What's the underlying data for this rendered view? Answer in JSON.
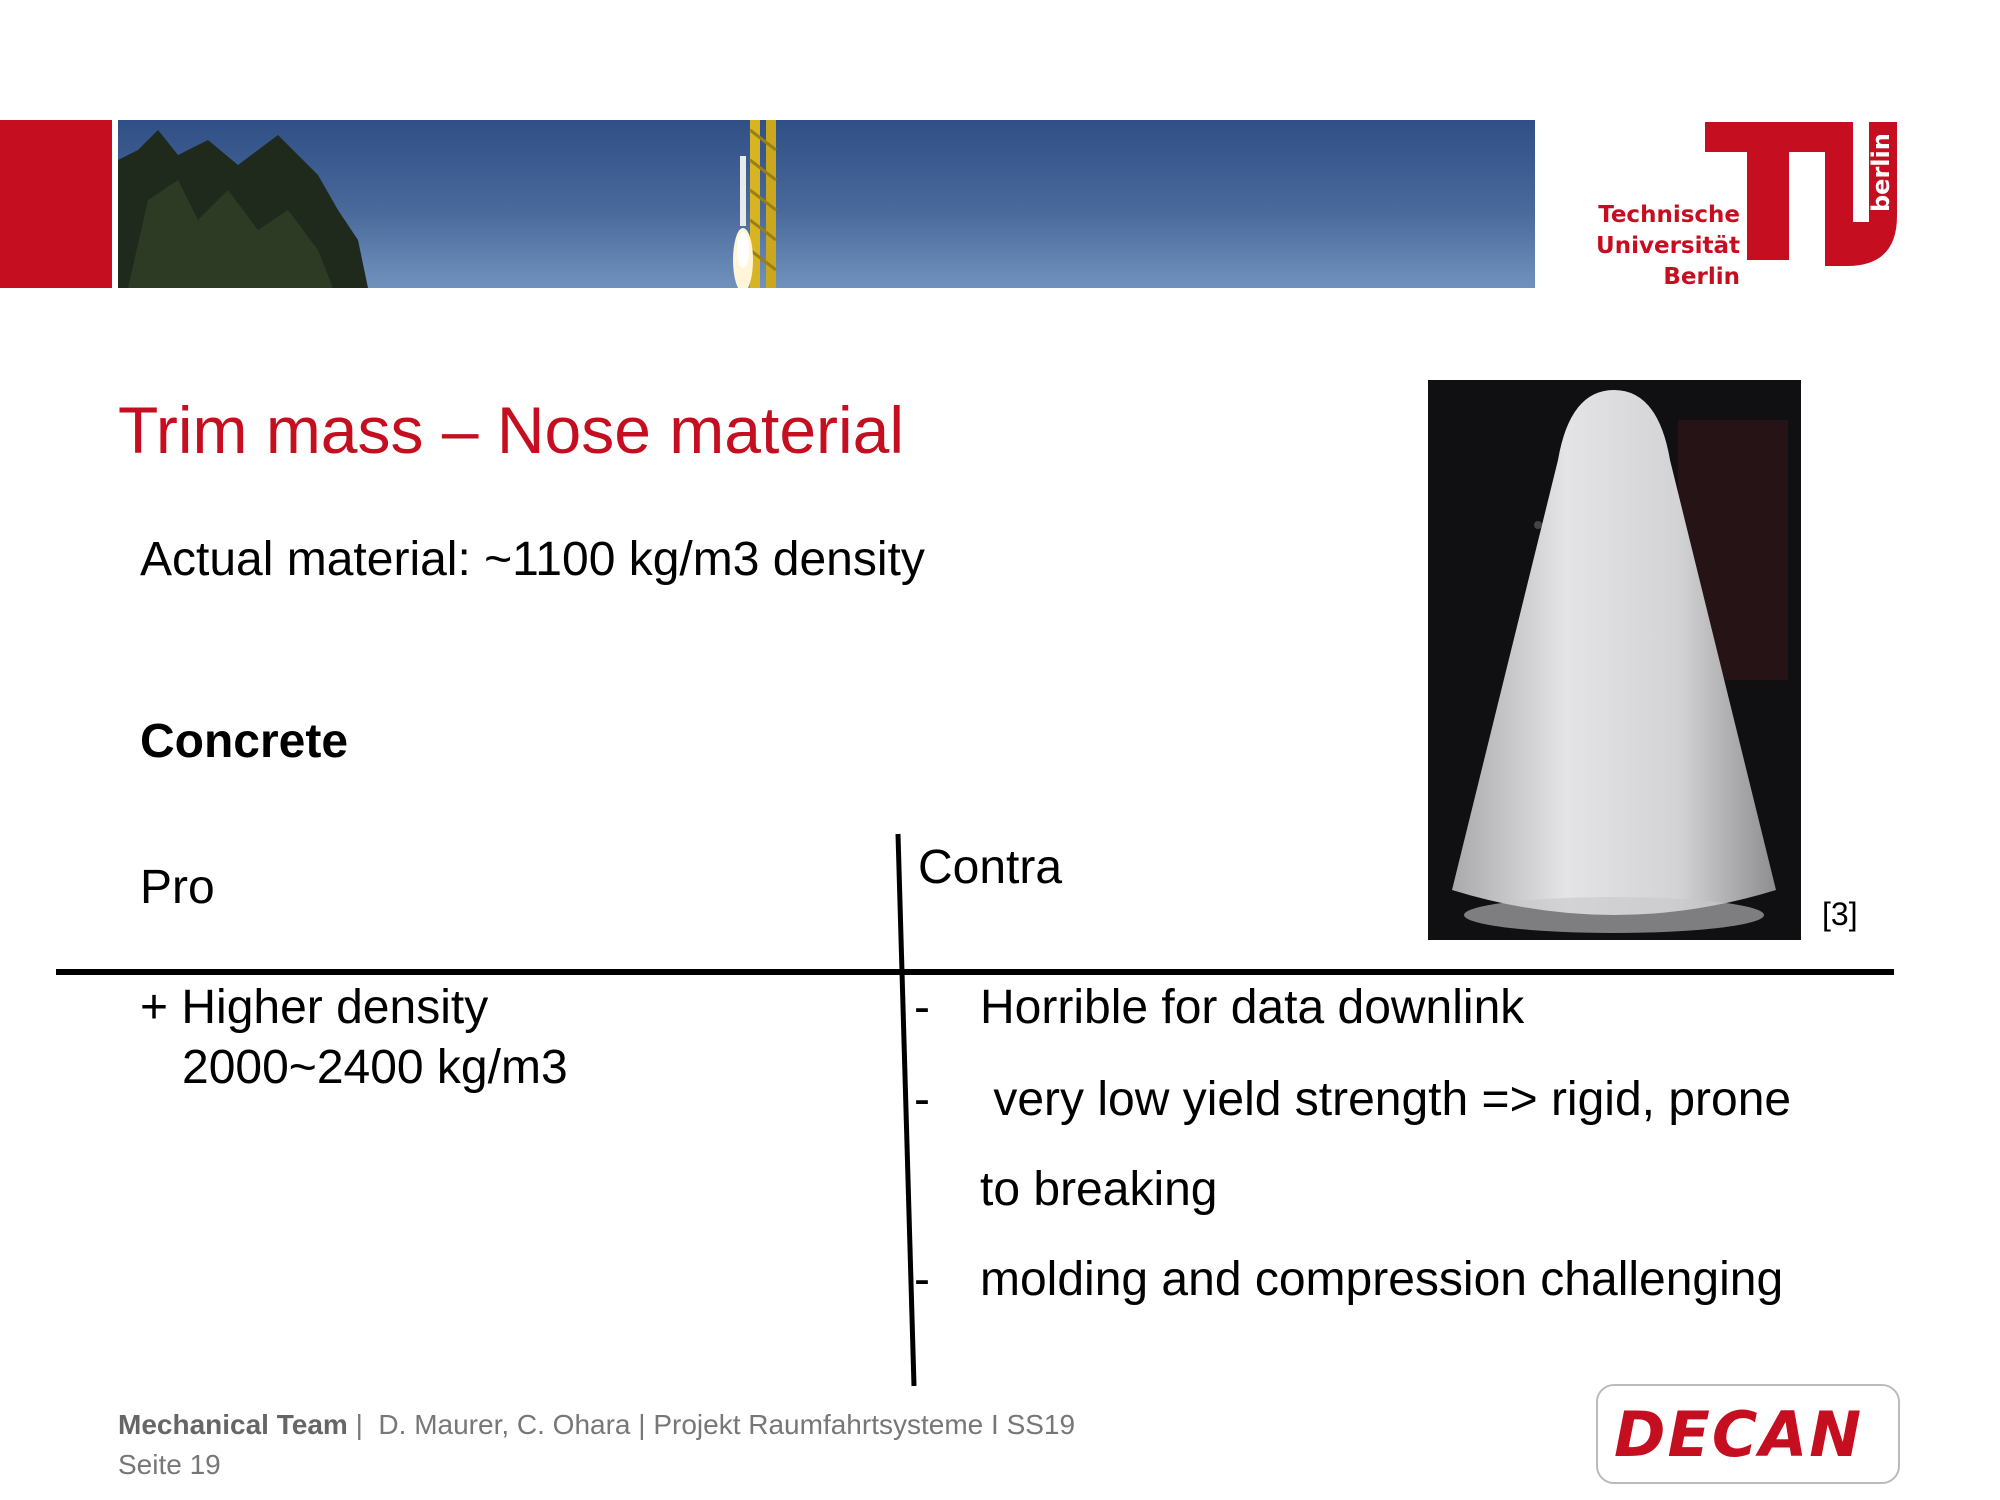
{
  "header": {
    "accent_color": "#c50e1f",
    "banner_image": "rocket-launch-photo",
    "logo": {
      "lines": "Technische\nUniversität\nBerlin",
      "vertical": "berlin"
    }
  },
  "slide": {
    "title": "Trim mass – Nose material",
    "subtitle": "Actual material: ~1100 kg/m3 density",
    "section": "Concrete",
    "pro_label": "Pro",
    "contra_label": "Contra",
    "pro_items": [
      {
        "bullet": "+",
        "line1": "Higher density",
        "line2": "2000~2400 kg/m3"
      }
    ],
    "contra_items": [
      {
        "bullet": "-",
        "text": "Horrible for data downlink"
      },
      {
        "bullet": "-",
        "text": " very low yield strength => rigid, prone"
      },
      {
        "bullet": "",
        "text": "to breaking"
      },
      {
        "bullet": "-",
        "text": "molding and compression challenging"
      }
    ],
    "photo": "concrete-nose-cone-photo",
    "photo_ref": "[3]"
  },
  "footer": {
    "team": "Mechanical Team",
    "separator": " |  ",
    "authors": "D. Maurer, C. Ohara | Projekt Raumfahrtsysteme I SS19",
    "page": "Seite 19",
    "decan_logo": "DECAN"
  }
}
